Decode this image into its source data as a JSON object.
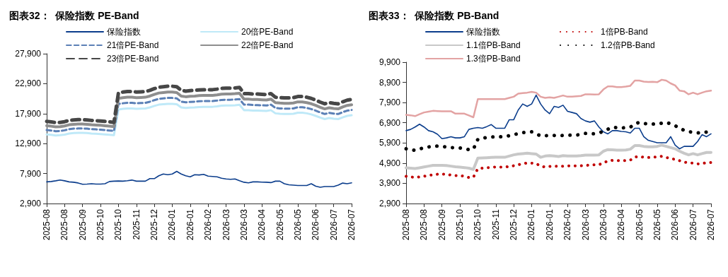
{
  "chart_data": [
    {
      "type": "line",
      "title": "图表32：  保险指数 PE-Band",
      "legend": "top",
      "marker": "none",
      "grid": false,
      "ylim": [
        2900,
        27900
      ],
      "yticks": [
        {
          "value": 2900,
          "label": "2,900"
        },
        {
          "value": 7900,
          "label": "7,900"
        },
        {
          "value": 12900,
          "label": "12,900"
        },
        {
          "value": 17900,
          "label": "17,900"
        },
        {
          "value": 22900,
          "label": "22,900"
        },
        {
          "value": 27900,
          "label": "27,900"
        }
      ],
      "categories": [
        "2025-08",
        null,
        null,
        null,
        "2025-08",
        null,
        null,
        null,
        "2025-09",
        null,
        null,
        null,
        "2025-10",
        null,
        null,
        null,
        "2025-10",
        null,
        null,
        null,
        "2025-11",
        null,
        null,
        null,
        "2025-12",
        null,
        null,
        null,
        "2026-01",
        null,
        null,
        null,
        "2026-01",
        null,
        null,
        null,
        "2026-02",
        null,
        null,
        null,
        "2026-03",
        null,
        null,
        null,
        "2026-03",
        null,
        null,
        null,
        "2026-04",
        null,
        null,
        null,
        "2026-05",
        null,
        null,
        null,
        "2026-05",
        null,
        null,
        null,
        "2026-06",
        null,
        null,
        null,
        "2026-07",
        null,
        null,
        null,
        "2026-07"
      ],
      "series": [
        {
          "name": "保险指数",
          "color": "#0b3d8c",
          "line_style": "solid",
          "values": [
            6510,
            6570,
            6690,
            6830,
            6690,
            6510,
            6450,
            6330,
            6110,
            6150,
            6210,
            6150,
            6150,
            6210,
            6570,
            6630,
            6660,
            6630,
            6710,
            6810,
            6630,
            6630,
            6630,
            7050,
            7050,
            7530,
            7830,
            7710,
            7830,
            8270,
            7830,
            7530,
            7350,
            7710,
            7660,
            7770,
            7470,
            7410,
            7350,
            7110,
            6990,
            6930,
            6990,
            6690,
            6450,
            6350,
            6510,
            6510,
            6470,
            6450,
            6390,
            6630,
            6630,
            6210,
            6030,
            5970,
            5910,
            5910,
            5910,
            6210,
            5790,
            5610,
            5730,
            5730,
            5730,
            5970,
            6310,
            6210,
            6350
          ]
        },
        {
          "name": "20倍PE-Band",
          "color": "#bfe9f8",
          "line_style": "solid",
          "values": [
            14440,
            14370,
            14260,
            14300,
            14400,
            14580,
            14650,
            14690,
            14690,
            14650,
            14580,
            14540,
            14500,
            14440,
            14370,
            14300,
            18580,
            18700,
            18770,
            18770,
            18700,
            18730,
            18770,
            18940,
            19190,
            19400,
            19470,
            19540,
            19540,
            19470,
            18940,
            18840,
            18900,
            18940,
            19010,
            19040,
            19040,
            19040,
            19120,
            19230,
            19260,
            19260,
            19300,
            19370,
            18480,
            18480,
            18410,
            18410,
            18370,
            18340,
            18480,
            17950,
            17880,
            17840,
            17840,
            17880,
            18050,
            18050,
            17950,
            17770,
            17520,
            17240,
            16990,
            17170,
            17060,
            16990,
            17280,
            17520,
            17630
          ]
        },
        {
          "name": "21倍PE-Band",
          "color": "#5b80b6",
          "line_style": "dashed",
          "values": [
            15160,
            15080,
            14970,
            15010,
            15120,
            15310,
            15390,
            15420,
            15420,
            15390,
            15310,
            15270,
            15230,
            15160,
            15080,
            15010,
            19510,
            19630,
            19700,
            19700,
            19630,
            19670,
            19700,
            19890,
            20150,
            20370,
            20440,
            20520,
            20520,
            20440,
            19890,
            19780,
            19850,
            19890,
            19960,
            20000,
            20000,
            20000,
            20080,
            20190,
            20220,
            20220,
            20260,
            20330,
            19400,
            19400,
            19330,
            19330,
            19290,
            19260,
            19400,
            18850,
            18770,
            18740,
            18740,
            18770,
            18960,
            18960,
            18850,
            18660,
            18400,
            18100,
            17840,
            18020,
            17910,
            17840,
            18140,
            18400,
            18510
          ]
        },
        {
          "name": "22倍PE-Band",
          "color": "#8e8e8e",
          "line_style": "solid",
          "values": [
            15880,
            15800,
            15690,
            15720,
            15840,
            16040,
            16120,
            16160,
            16160,
            16120,
            16040,
            15990,
            15950,
            15880,
            15800,
            15720,
            20440,
            20570,
            20640,
            20640,
            20570,
            20600,
            20640,
            20830,
            21110,
            21340,
            21420,
            21490,
            21490,
            21420,
            20830,
            20720,
            20790,
            20830,
            20910,
            20950,
            20950,
            20950,
            21030,
            21150,
            21190,
            21190,
            21230,
            21300,
            20330,
            20330,
            20250,
            20250,
            20210,
            20170,
            20330,
            19740,
            19670,
            19630,
            19630,
            19670,
            19860,
            19860,
            19740,
            19550,
            19270,
            18960,
            18690,
            18880,
            18770,
            18690,
            19010,
            19270,
            19390
          ]
        },
        {
          "name": "23倍PE-Band",
          "color": "#474747",
          "line_style": "dashed",
          "values": [
            16600,
            16520,
            16400,
            16440,
            16560,
            16770,
            16850,
            16890,
            16890,
            16850,
            16770,
            16720,
            16680,
            16600,
            16520,
            16440,
            21370,
            21500,
            21580,
            21580,
            21500,
            21540,
            21580,
            21780,
            22070,
            22310,
            22390,
            22470,
            22470,
            22390,
            21780,
            21660,
            21740,
            21780,
            21860,
            21900,
            21900,
            21900,
            21990,
            22110,
            22150,
            22150,
            22190,
            22270,
            21250,
            21250,
            21170,
            21170,
            21130,
            21090,
            21250,
            20640,
            20560,
            20520,
            20520,
            20560,
            20760,
            20760,
            20640,
            20440,
            20150,
            19820,
            19540,
            19740,
            19620,
            19540,
            19870,
            20150,
            20270
          ]
        }
      ]
    },
    {
      "type": "line",
      "title": "图表33：  保险指数 PB-Band",
      "legend": "top",
      "marker": "none",
      "grid": false,
      "ylim": [
        2900,
        9900
      ],
      "yticks": [
        {
          "value": 2900,
          "label": "2,900"
        },
        {
          "value": 3900,
          "label": "3,900"
        },
        {
          "value": 4900,
          "label": "4,900"
        },
        {
          "value": 5900,
          "label": "5,900"
        },
        {
          "value": 6900,
          "label": "6,900"
        },
        {
          "value": 7900,
          "label": "7,900"
        },
        {
          "value": 8900,
          "label": "8,900"
        },
        {
          "value": 9900,
          "label": "9,900"
        }
      ],
      "categories": [
        "2025-08",
        null,
        null,
        null,
        "2025-08",
        null,
        null,
        null,
        "2025-09",
        null,
        null,
        null,
        "2025-10",
        null,
        null,
        null,
        "2025-10",
        null,
        null,
        null,
        "2025-11",
        null,
        null,
        null,
        "2025-12",
        null,
        null,
        null,
        "2026-01",
        null,
        null,
        null,
        "2026-01",
        null,
        null,
        null,
        "2026-02",
        null,
        null,
        null,
        "2026-03",
        null,
        null,
        null,
        "2026-03",
        null,
        null,
        null,
        "2026-04",
        null,
        null,
        null,
        "2026-05",
        null,
        null,
        null,
        "2026-05",
        null,
        null,
        null,
        "2026-06",
        null,
        null,
        null,
        "2026-07",
        null,
        null,
        null,
        "2026-07"
      ],
      "series": [
        {
          "name": "保险指数",
          "color": "#0b3d8c",
          "line_style": "solid",
          "values": [
            6510,
            6570,
            6690,
            6830,
            6690,
            6510,
            6450,
            6330,
            6110,
            6150,
            6210,
            6150,
            6150,
            6210,
            6570,
            6630,
            6660,
            6630,
            6710,
            6810,
            6630,
            6630,
            6630,
            7050,
            7050,
            7530,
            7830,
            7710,
            7830,
            8270,
            7830,
            7530,
            7350,
            7710,
            7660,
            7770,
            7470,
            7410,
            7350,
            7110,
            6990,
            6930,
            6990,
            6690,
            6450,
            6350,
            6510,
            6510,
            6470,
            6450,
            6390,
            6630,
            6630,
            6210,
            6030,
            5970,
            5910,
            5910,
            5910,
            6210,
            5790,
            5610,
            5730,
            5730,
            5730,
            5970,
            6310,
            6210,
            6350
          ]
        },
        {
          "name": "1倍PB-Band",
          "color": "#c00000",
          "line_style": "dotted",
          "values": [
            4250,
            4220,
            4190,
            4220,
            4250,
            4290,
            4320,
            4350,
            4360,
            4350,
            4310,
            4280,
            4280,
            4250,
            4190,
            4200,
            4630,
            4650,
            4670,
            4690,
            4710,
            4700,
            4700,
            4740,
            4770,
            4820,
            4870,
            4910,
            4900,
            4880,
            4750,
            4710,
            4740,
            4750,
            4740,
            4750,
            4760,
            4760,
            4760,
            4770,
            4780,
            4810,
            4820,
            4820,
            4920,
            5000,
            5040,
            5030,
            5010,
            5030,
            5050,
            5200,
            5230,
            5190,
            5180,
            5190,
            5210,
            5240,
            5180,
            5140,
            5080,
            5020,
            4950,
            4920,
            4900,
            4860,
            4880,
            4920,
            4930
          ]
        },
        {
          "name": "1.1倍PB-Band",
          "color": "#c8c8c8",
          "line_style": "solid",
          "values": [
            4670,
            4650,
            4630,
            4670,
            4710,
            4750,
            4790,
            4790,
            4790,
            4780,
            4750,
            4720,
            4700,
            4680,
            4650,
            4590,
            5150,
            5160,
            5170,
            5180,
            5190,
            5190,
            5190,
            5250,
            5310,
            5350,
            5370,
            5390,
            5370,
            5350,
            5190,
            5250,
            5270,
            5250,
            5230,
            5270,
            5250,
            5250,
            5250,
            5270,
            5300,
            5300,
            5300,
            5310,
            5490,
            5570,
            5560,
            5540,
            5540,
            5550,
            5590,
            5770,
            5770,
            5730,
            5710,
            5710,
            5730,
            5790,
            5730,
            5670,
            5610,
            5490,
            5390,
            5310,
            5370,
            5310,
            5370,
            5430,
            5430
          ]
        },
        {
          "name": "1.2倍PB-Band",
          "color": "#000000",
          "line_style": "dotted",
          "values": [
            5610,
            5570,
            5530,
            5600,
            5660,
            5700,
            5740,
            5740,
            5730,
            5700,
            5670,
            5660,
            5650,
            5610,
            5570,
            5590,
            6080,
            6130,
            6170,
            6190,
            6210,
            6210,
            6210,
            6260,
            6310,
            6360,
            6410,
            6430,
            6450,
            6350,
            6250,
            6260,
            6270,
            6270,
            6260,
            6270,
            6280,
            6285,
            6290,
            6320,
            6370,
            6360,
            6350,
            6400,
            6470,
            6580,
            6680,
            6660,
            6640,
            6660,
            6680,
            6840,
            6920,
            6870,
            6840,
            6840,
            6840,
            6880,
            6920,
            6840,
            6750,
            6640,
            6520,
            6460,
            6430,
            6400,
            6400,
            6440,
            6490
          ]
        },
        {
          "name": "1.3倍PB-Band",
          "color": "#e3a3a3",
          "line_style": "solid",
          "values": [
            7290,
            7270,
            7230,
            7320,
            7410,
            7450,
            7490,
            7480,
            7470,
            7470,
            7470,
            7350,
            7350,
            7350,
            7260,
            7170,
            8070,
            8070,
            8070,
            8070,
            8070,
            8070,
            8070,
            8130,
            8190,
            8340,
            8370,
            8390,
            8430,
            8390,
            8190,
            8130,
            8160,
            8130,
            8190,
            8250,
            8190,
            8190,
            8210,
            8230,
            8310,
            8310,
            8300,
            8310,
            8550,
            8700,
            8700,
            8670,
            8670,
            8690,
            8730,
            8990,
            8990,
            8940,
            8920,
            8930,
            8910,
            9030,
            8990,
            8850,
            8750,
            8490,
            8460,
            8310,
            8390,
            8310,
            8390,
            8460,
            8490
          ]
        }
      ]
    }
  ]
}
